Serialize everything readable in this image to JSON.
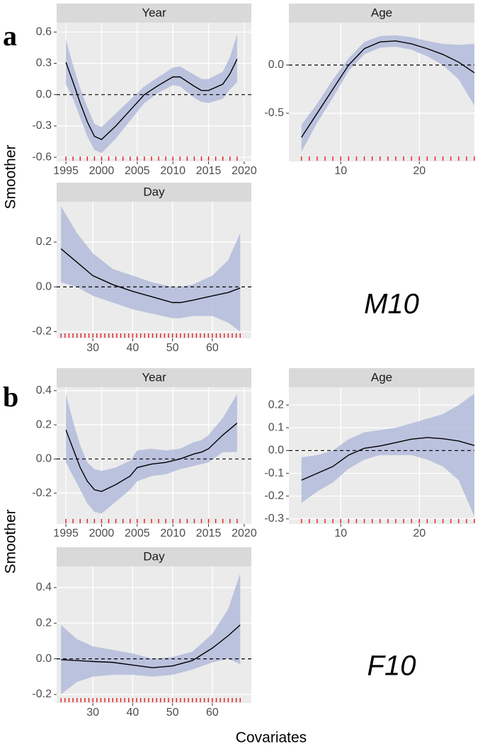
{
  "figure": {
    "panel_labels": [
      "a",
      "b"
    ],
    "model_labels": [
      "M10",
      "F10"
    ],
    "y_label": "Smoother",
    "x_label": "Covariates"
  },
  "chart_data": [
    {
      "type": "line",
      "title": "Year",
      "x": [
        1995,
        1996,
        1997,
        1998,
        1999,
        2000,
        2002,
        2004,
        2006,
        2008,
        2010,
        2011,
        2013,
        2014,
        2015,
        2017,
        2018,
        2019
      ],
      "series": [
        {
          "color": "#000000",
          "band_color": "#b3bbdb",
          "values": [
            0.31,
            0.12,
            -0.08,
            -0.26,
            -0.4,
            -0.43,
            -0.3,
            -0.15,
            0.0,
            0.09,
            0.17,
            0.17,
            0.08,
            0.04,
            0.04,
            0.1,
            0.2,
            0.34
          ],
          "lower": [
            0.1,
            -0.04,
            -0.22,
            -0.4,
            -0.53,
            -0.56,
            -0.42,
            -0.25,
            -0.08,
            0.02,
            0.09,
            0.08,
            -0.03,
            -0.07,
            -0.08,
            -0.04,
            0.05,
            0.12
          ],
          "upper": [
            0.53,
            0.28,
            0.06,
            -0.12,
            -0.28,
            -0.31,
            -0.18,
            -0.05,
            0.08,
            0.17,
            0.26,
            0.27,
            0.19,
            0.15,
            0.15,
            0.22,
            0.36,
            0.58
          ]
        }
      ],
      "reference_line": 0,
      "rug_color": "#e31a1c",
      "rug": [
        1995,
        1996,
        1997,
        1998,
        1999,
        2000,
        2001,
        2002,
        2003,
        2004,
        2005,
        2006,
        2007,
        2008,
        2009,
        2010,
        2011,
        2012,
        2013,
        2014,
        2015,
        2016,
        2017,
        2018,
        2019
      ],
      "xlim": [
        1993.7,
        2021
      ],
      "xticks": [
        1995,
        2000,
        2005,
        2010,
        2015,
        2020
      ],
      "ylim": [
        -0.64,
        0.69
      ],
      "yticks": [
        -0.6,
        -0.3,
        {
          "value": 0,
          "label": "0.0"
        },
        0.3,
        0.6
      ],
      "grid": true
    },
    {
      "type": "line",
      "title": "Age",
      "x": [
        5,
        7,
        9,
        11,
        13,
        15,
        17,
        19,
        21,
        23,
        25,
        27
      ],
      "series": [
        {
          "color": "#000000",
          "band_color": "#b3bbdb",
          "values": [
            -0.75,
            -0.5,
            -0.25,
            0.0,
            0.17,
            0.24,
            0.25,
            0.22,
            0.17,
            0.11,
            0.03,
            -0.08
          ],
          "lower": [
            -0.9,
            -0.6,
            -0.34,
            -0.06,
            0.11,
            0.18,
            0.19,
            0.16,
            0.09,
            0.0,
            -0.15,
            -0.42
          ],
          "upper": [
            -0.62,
            -0.4,
            -0.15,
            0.07,
            0.24,
            0.3,
            0.31,
            0.29,
            0.25,
            0.22,
            0.21,
            0.22
          ]
        }
      ],
      "reference_line": 0,
      "rug_color": "#e31a1c",
      "rug": [
        5,
        6,
        7,
        8,
        9,
        10,
        11,
        12,
        13,
        14,
        15,
        16,
        17,
        18,
        19,
        20,
        21,
        22,
        23,
        24,
        25,
        26,
        27
      ],
      "xlim": [
        3.4,
        27
      ],
      "xticks": [
        10,
        20
      ],
      "ylim": [
        -1.0,
        0.44
      ],
      "yticks": [
        -0.5,
        {
          "value": 0,
          "label": "0.0"
        }
      ],
      "grid": true
    },
    {
      "type": "line",
      "title": "Day",
      "x": [
        22,
        26,
        30,
        35,
        40,
        45,
        50,
        52,
        55,
        60,
        64,
        67
      ],
      "series": [
        {
          "color": "#000000",
          "band_color": "#b3bbdb",
          "values": [
            0.17,
            0.11,
            0.05,
            0.01,
            -0.02,
            -0.045,
            -0.07,
            -0.07,
            -0.06,
            -0.04,
            -0.025,
            -0.005
          ],
          "lower": [
            0.02,
            0.0,
            -0.04,
            -0.07,
            -0.1,
            -0.12,
            -0.14,
            -0.14,
            -0.13,
            -0.13,
            -0.16,
            -0.2
          ],
          "upper": [
            0.36,
            0.24,
            0.15,
            0.08,
            0.05,
            0.02,
            0.0,
            0.0,
            0.01,
            0.05,
            0.12,
            0.24
          ]
        }
      ],
      "reference_line": 0,
      "rug_color": "#e31a1c",
      "rug": [
        22,
        23,
        24,
        25,
        26,
        27,
        28,
        29,
        30,
        31,
        32,
        33,
        34,
        35,
        36,
        37,
        38,
        39,
        40,
        41,
        42,
        43,
        44,
        45,
        46,
        47,
        48,
        49,
        50,
        51,
        52,
        53,
        54,
        55,
        56,
        57,
        58,
        59,
        60,
        61,
        62,
        63,
        64,
        65,
        66,
        67
      ],
      "xlim": [
        20.9,
        69.8
      ],
      "xticks": [
        30,
        40,
        50,
        60
      ],
      "ylim": [
        -0.23,
        0.38
      ],
      "yticks": [
        -0.2,
        {
          "value": 0,
          "label": "0.0"
        },
        0.2
      ],
      "grid": true
    },
    {
      "type": "line",
      "title": "Year",
      "x": [
        1995,
        1996,
        1997,
        1998,
        1999,
        2000,
        2002,
        2004,
        2005,
        2007,
        2009,
        2011,
        2013,
        2014,
        2015,
        2017,
        2019
      ],
      "series": [
        {
          "color": "#000000",
          "band_color": "#b3bbdb",
          "values": [
            0.17,
            0.06,
            -0.05,
            -0.13,
            -0.18,
            -0.19,
            -0.15,
            -0.1,
            -0.05,
            -0.03,
            -0.02,
            0.0,
            0.03,
            0.04,
            0.06,
            0.14,
            0.21
          ],
          "lower": [
            -0.02,
            -0.1,
            -0.18,
            -0.26,
            -0.31,
            -0.32,
            -0.25,
            -0.18,
            -0.13,
            -0.1,
            -0.09,
            -0.06,
            -0.04,
            -0.03,
            -0.02,
            0.04,
            0.04
          ],
          "upper": [
            0.38,
            0.22,
            0.08,
            -0.02,
            -0.06,
            -0.07,
            -0.05,
            -0.01,
            0.05,
            0.06,
            0.05,
            0.06,
            0.1,
            0.11,
            0.14,
            0.24,
            0.38
          ]
        }
      ],
      "reference_line": 0,
      "rug_color": "#e31a1c",
      "rug": [
        1995,
        1996,
        1997,
        1998,
        1999,
        2000,
        2001,
        2002,
        2003,
        2004,
        2005,
        2006,
        2007,
        2008,
        2009,
        2010,
        2011,
        2012,
        2013,
        2014,
        2015,
        2016,
        2017,
        2018,
        2019
      ],
      "xlim": [
        1993.7,
        2021
      ],
      "xticks": [
        1995,
        2000,
        2005,
        2010,
        2015,
        2020
      ],
      "ylim": [
        -0.38,
        0.42
      ],
      "yticks": [
        -0.2,
        {
          "value": 0,
          "label": "0.0"
        },
        0.2,
        0.4
      ],
      "grid": true
    },
    {
      "type": "line",
      "title": "Age",
      "x": [
        5,
        7,
        9,
        11,
        13,
        15,
        17,
        19,
        21,
        23,
        25,
        27
      ],
      "series": [
        {
          "color": "#000000",
          "band_color": "#b3bbdb",
          "values": [
            -0.13,
            -0.1,
            -0.07,
            -0.02,
            0.01,
            0.02,
            0.035,
            0.05,
            0.057,
            0.052,
            0.042,
            0.022
          ],
          "lower": [
            -0.23,
            -0.18,
            -0.14,
            -0.08,
            -0.04,
            -0.02,
            -0.02,
            -0.02,
            -0.04,
            -0.07,
            -0.13,
            -0.29
          ],
          "upper": [
            -0.03,
            -0.02,
            0.0,
            0.05,
            0.08,
            0.09,
            0.1,
            0.12,
            0.14,
            0.16,
            0.2,
            0.25
          ]
        }
      ],
      "reference_line": 0,
      "rug_color": "#e31a1c",
      "rug": [
        5,
        6,
        7,
        8,
        9,
        10,
        11,
        12,
        13,
        14,
        15,
        16,
        17,
        18,
        19,
        20,
        21,
        22,
        23,
        24,
        25,
        26,
        27
      ],
      "xlim": [
        3.4,
        27
      ],
      "xticks": [
        10,
        20
      ],
      "ylim": [
        -0.322,
        0.278
      ],
      "yticks": [
        -0.3,
        -0.2,
        -0.1,
        {
          "value": 0,
          "label": "0.0"
        },
        0.1,
        0.2
      ],
      "grid": true
    },
    {
      "type": "line",
      "title": "Day",
      "x": [
        22,
        26,
        30,
        35,
        40,
        45,
        50,
        55,
        60,
        64,
        67
      ],
      "series": [
        {
          "color": "#000000",
          "band_color": "#b3bbdb",
          "values": [
            -0.005,
            -0.01,
            -0.015,
            -0.02,
            -0.035,
            -0.05,
            -0.04,
            -0.01,
            0.06,
            0.13,
            0.19
          ],
          "lower": [
            -0.2,
            -0.13,
            -0.1,
            -0.09,
            -0.09,
            -0.1,
            -0.09,
            -0.06,
            -0.02,
            0.0,
            -0.03
          ],
          "upper": [
            0.19,
            0.11,
            0.07,
            0.05,
            0.03,
            0.0,
            0.01,
            0.04,
            0.14,
            0.28,
            0.48
          ]
        }
      ],
      "reference_line": 0,
      "rug_color": "#e31a1c",
      "rug": [
        22,
        23,
        24,
        25,
        26,
        27,
        28,
        29,
        30,
        31,
        32,
        33,
        34,
        35,
        36,
        37,
        38,
        39,
        40,
        41,
        42,
        43,
        44,
        45,
        46,
        47,
        48,
        49,
        50,
        51,
        52,
        53,
        54,
        55,
        56,
        57,
        58,
        59,
        60,
        61,
        62,
        63,
        64,
        65,
        66,
        67
      ],
      "xlim": [
        20.9,
        69.8
      ],
      "xticks": [
        30,
        40,
        50,
        60
      ],
      "ylim": [
        -0.248,
        0.519
      ],
      "yticks": [
        -0.2,
        {
          "value": 0,
          "label": "0.0"
        },
        0.2,
        0.4
      ],
      "grid": true
    }
  ]
}
